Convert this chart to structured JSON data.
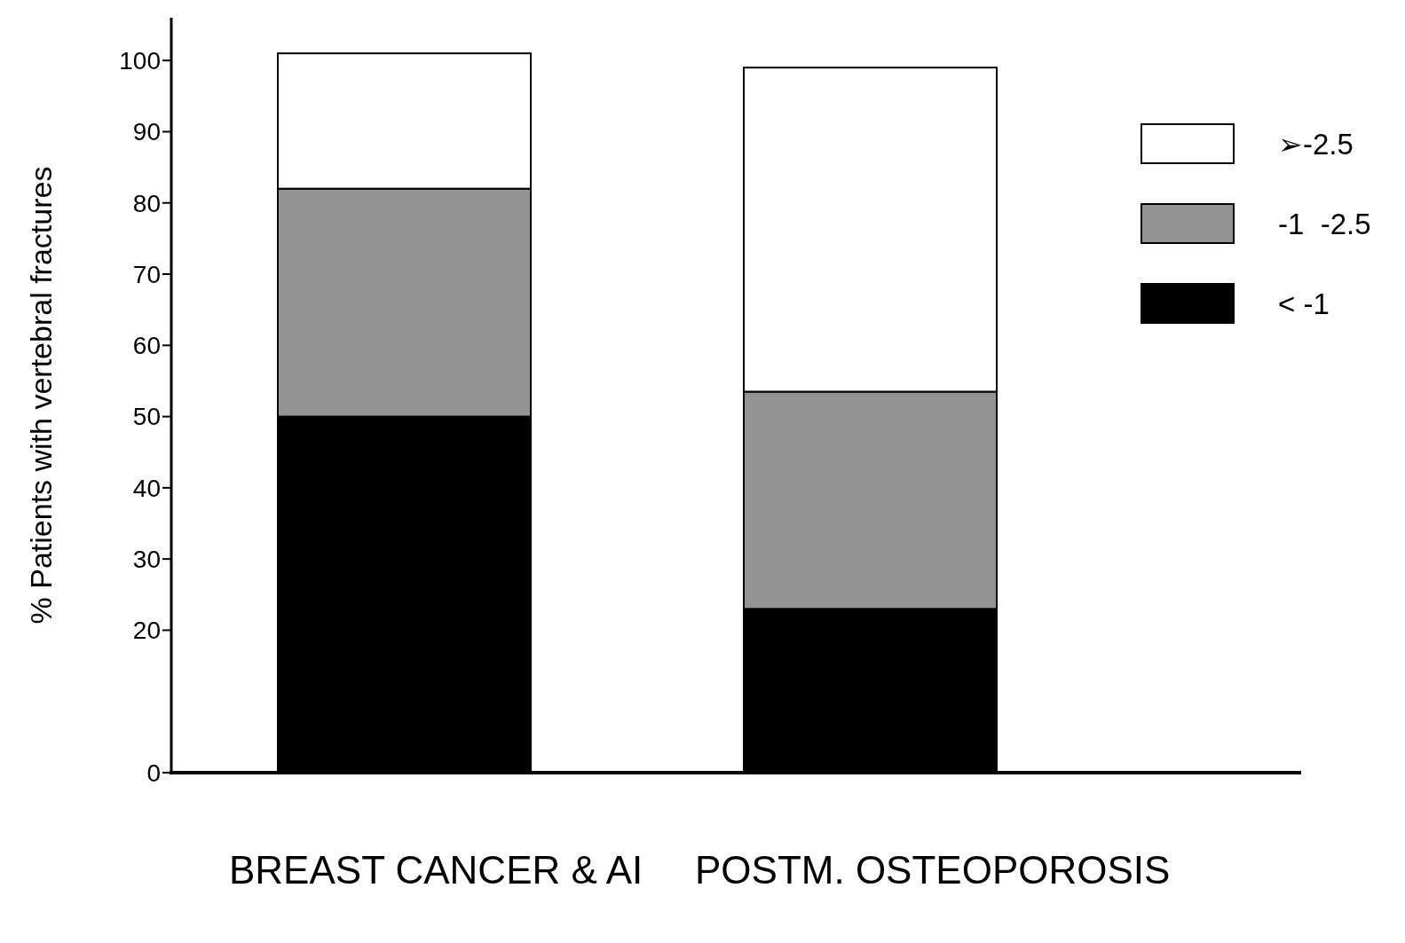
{
  "chart_data": {
    "type": "bar",
    "stacked": true,
    "ylabel": "% Patients with  vertebral  fractures",
    "categories": [
      "BREAST CANCER & AI",
      "POSTM. OSTEOPOROSIS"
    ],
    "series": [
      {
        "name": "< -1",
        "color": "#000000",
        "values": [
          50,
          23
        ]
      },
      {
        "name": "-1  -2.5",
        "color": "#939393",
        "values": [
          32,
          30.5
        ]
      },
      {
        "name": "➢-2.5",
        "color": "#ffffff",
        "values": [
          19,
          45.5
        ]
      }
    ],
    "ylim": [
      0,
      106
    ],
    "yticks": [
      0,
      20,
      30,
      40,
      50,
      60,
      70,
      80,
      90,
      100
    ],
    "grid": false,
    "legend": "top right"
  }
}
